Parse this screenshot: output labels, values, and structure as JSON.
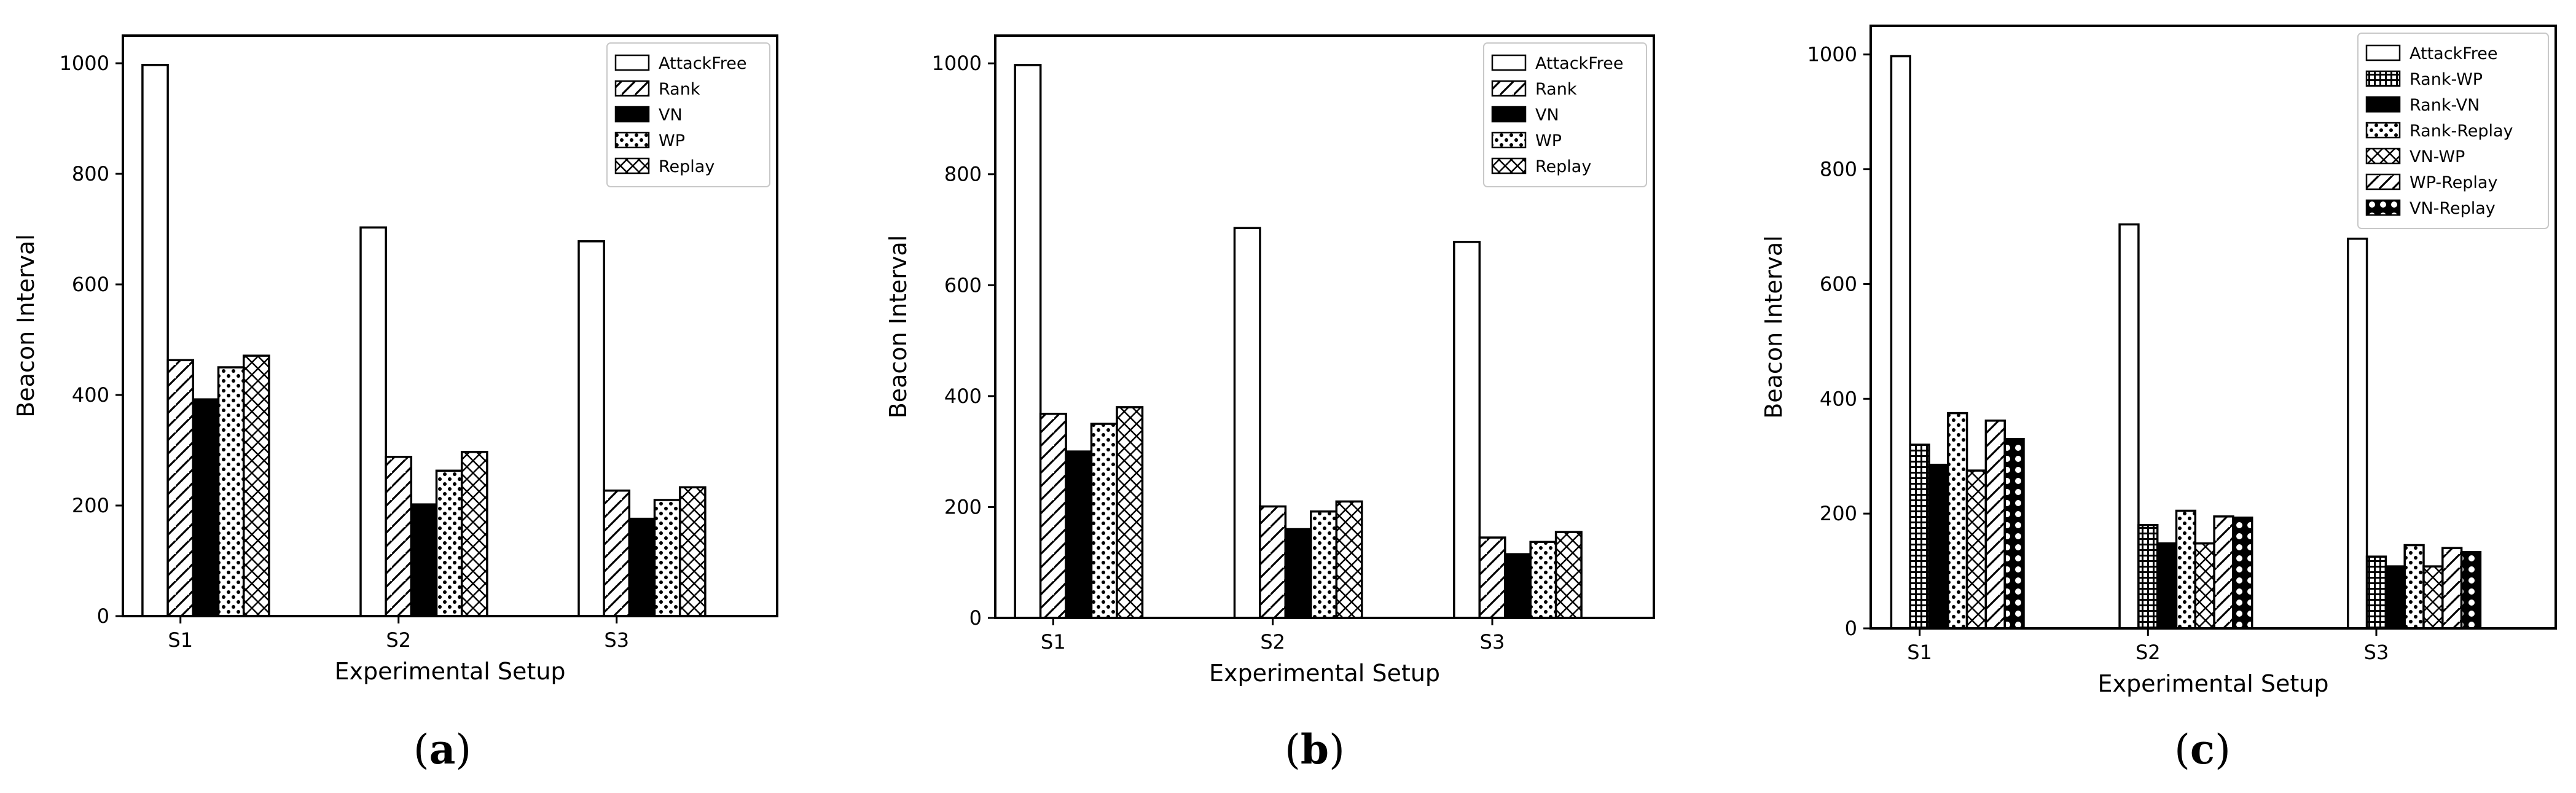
{
  "figure": {
    "panel_labels": [
      "a",
      "b",
      "c"
    ]
  },
  "chart_data": [
    {
      "type": "bar",
      "panel": "a",
      "title": "",
      "xlabel": "Experimental Setup",
      "ylabel": "Beacon Interval",
      "ylim": [
        0,
        1050
      ],
      "yticks": [
        0,
        200,
        400,
        600,
        800,
        1000
      ],
      "categories": [
        "S1",
        "S2",
        "S3"
      ],
      "legend_position": "top-right",
      "series": [
        {
          "name": "AttackFree",
          "pattern": "empty",
          "values": [
            997,
            703,
            678
          ]
        },
        {
          "name": "Rank",
          "pattern": "diag",
          "values": [
            463,
            288,
            227
          ]
        },
        {
          "name": "VN",
          "pattern": "solid",
          "values": [
            392,
            202,
            176
          ]
        },
        {
          "name": "WP",
          "pattern": "dots",
          "values": [
            450,
            263,
            210
          ]
        },
        {
          "name": "Replay",
          "pattern": "xhatch",
          "values": [
            471,
            297,
            233
          ]
        }
      ]
    },
    {
      "type": "bar",
      "panel": "b",
      "title": "",
      "xlabel": "Experimental Setup",
      "ylabel": "Beacon Interval",
      "ylim": [
        0,
        1050
      ],
      "yticks": [
        0,
        200,
        400,
        600,
        800,
        1000
      ],
      "categories": [
        "S1",
        "S2",
        "S3"
      ],
      "legend_position": "top-right",
      "series": [
        {
          "name": "AttackFree",
          "pattern": "empty",
          "values": [
            997,
            703,
            678
          ]
        },
        {
          "name": "Rank",
          "pattern": "diag",
          "values": [
            368,
            201,
            145
          ]
        },
        {
          "name": "VN",
          "pattern": "solid",
          "values": [
            300,
            160,
            115
          ]
        },
        {
          "name": "WP",
          "pattern": "dots",
          "values": [
            350,
            192,
            137
          ]
        },
        {
          "name": "Replay",
          "pattern": "xhatch",
          "values": [
            380,
            210,
            155
          ]
        }
      ]
    },
    {
      "type": "bar",
      "panel": "c",
      "title": "",
      "xlabel": "Experimental Setup",
      "ylabel": "Beacon Interval",
      "ylim": [
        0,
        1050
      ],
      "yticks": [
        0,
        200,
        400,
        600,
        800,
        1000
      ],
      "categories": [
        "S1",
        "S2",
        "S3"
      ],
      "legend_position": "top-right",
      "series": [
        {
          "name": "AttackFree",
          "pattern": "empty",
          "values": [
            997,
            704,
            679
          ]
        },
        {
          "name": "Rank-WP",
          "pattern": "grid",
          "values": [
            320,
            180,
            125
          ]
        },
        {
          "name": "Rank-VN",
          "pattern": "solid",
          "values": [
            285,
            148,
            108
          ]
        },
        {
          "name": "Rank-Replay",
          "pattern": "dots",
          "values": [
            375,
            205,
            145
          ]
        },
        {
          "name": "VN-WP",
          "pattern": "xhatch",
          "values": [
            275,
            148,
            108
          ]
        },
        {
          "name": "WP-Replay",
          "pattern": "diag",
          "values": [
            362,
            195,
            140
          ]
        },
        {
          "name": "VN-Replay",
          "pattern": "circles",
          "values": [
            330,
            193,
            133
          ]
        }
      ]
    }
  ]
}
